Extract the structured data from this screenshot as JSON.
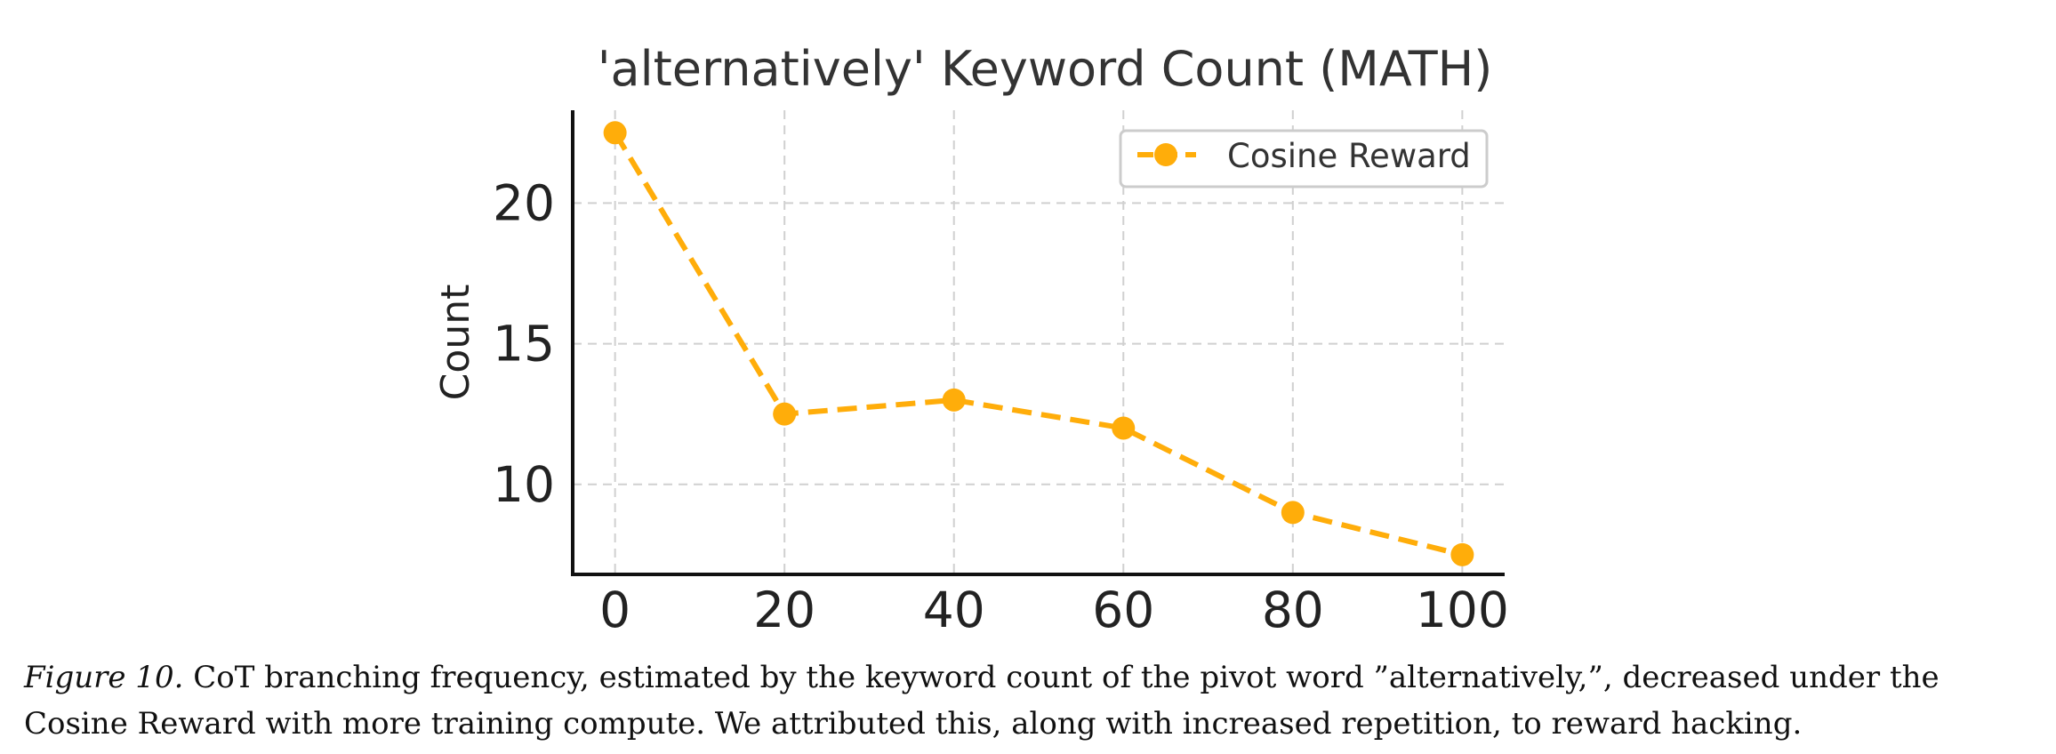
{
  "chart_data": {
    "type": "line",
    "title": "'alternatively' Keyword Count (MATH)",
    "xlabel": "",
    "ylabel": "Count",
    "x": [
      0,
      20,
      40,
      60,
      80,
      100
    ],
    "series": [
      {
        "name": "Cosine Reward",
        "values": [
          22.5,
          12.5,
          13,
          12,
          9,
          7.5
        ],
        "color": "#FFAD0A",
        "line_style": "dashed",
        "marker": "circle"
      }
    ],
    "xticks": [
      0,
      20,
      40,
      60,
      80,
      100
    ],
    "yticks": [
      10,
      15,
      20
    ],
    "xlim": [
      -5,
      105
    ],
    "ylim": [
      6.8,
      23.3
    ],
    "grid": true,
    "legend_position": "upper right"
  },
  "caption": {
    "label": "Figure 10.",
    "text": "CoT branching frequency, estimated by the keyword count of the pivot word ”alternatively,”, decreased under the Cosine Reward with more training compute. We attributed this, along with increased repetition, to reward hacking."
  }
}
